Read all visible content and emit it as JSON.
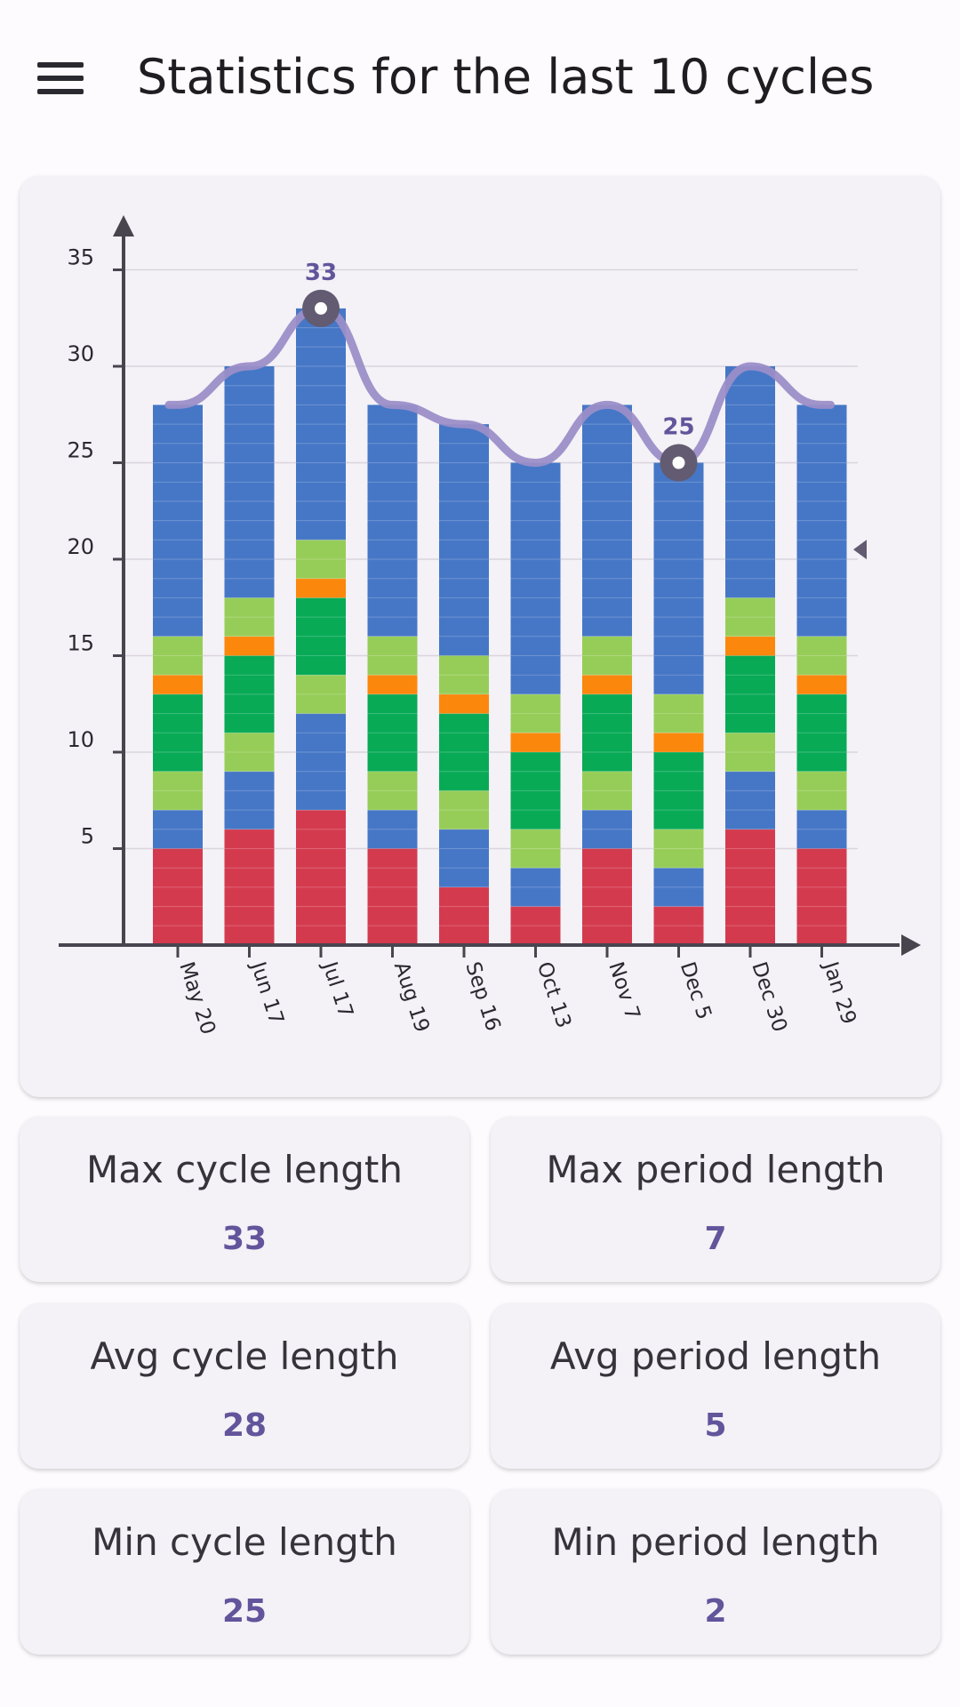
{
  "app_bar": {
    "title": "Statistics for the last 10 cycles",
    "menu_icon": "hamburger-menu-icon"
  },
  "colors": {
    "period": "#d43a4e",
    "normal": "#4677c6",
    "light_green": "#96cd58",
    "green": "#08aa56",
    "orange": "#fb870d",
    "trend_line": "#9b8ec8",
    "accent": "#63549b"
  },
  "chart_data": {
    "type": "bar",
    "stacked": true,
    "categories": [
      "May 20",
      "Jun 17",
      "Jul 17",
      "Aug 19",
      "Sep 16",
      "Oct 13",
      "Nov 7",
      "Dec 5",
      "Dec 30",
      "Jan 29"
    ],
    "cycle_lengths": [
      28,
      30,
      33,
      28,
      27,
      25,
      28,
      25,
      30,
      28
    ],
    "segments": [
      [
        {
          "color": "period",
          "days": 5
        },
        {
          "color": "normal",
          "days": 2
        },
        {
          "color": "light_green",
          "days": 2
        },
        {
          "color": "green",
          "days": 4
        },
        {
          "color": "orange",
          "days": 1
        },
        {
          "color": "light_green",
          "days": 2
        },
        {
          "color": "normal",
          "days": 12
        }
      ],
      [
        {
          "color": "period",
          "days": 6
        },
        {
          "color": "normal",
          "days": 3
        },
        {
          "color": "light_green",
          "days": 2
        },
        {
          "color": "green",
          "days": 4
        },
        {
          "color": "orange",
          "days": 1
        },
        {
          "color": "light_green",
          "days": 2
        },
        {
          "color": "normal",
          "days": 12
        }
      ],
      [
        {
          "color": "period",
          "days": 7
        },
        {
          "color": "normal",
          "days": 5
        },
        {
          "color": "light_green",
          "days": 2
        },
        {
          "color": "green",
          "days": 4
        },
        {
          "color": "orange",
          "days": 1
        },
        {
          "color": "light_green",
          "days": 2
        },
        {
          "color": "normal",
          "days": 12
        }
      ],
      [
        {
          "color": "period",
          "days": 5
        },
        {
          "color": "normal",
          "days": 2
        },
        {
          "color": "light_green",
          "days": 2
        },
        {
          "color": "green",
          "days": 4
        },
        {
          "color": "orange",
          "days": 1
        },
        {
          "color": "light_green",
          "days": 2
        },
        {
          "color": "normal",
          "days": 12
        }
      ],
      [
        {
          "color": "period",
          "days": 3
        },
        {
          "color": "normal",
          "days": 3
        },
        {
          "color": "light_green",
          "days": 2
        },
        {
          "color": "green",
          "days": 4
        },
        {
          "color": "orange",
          "days": 1
        },
        {
          "color": "light_green",
          "days": 2
        },
        {
          "color": "normal",
          "days": 12
        }
      ],
      [
        {
          "color": "period",
          "days": 2
        },
        {
          "color": "normal",
          "days": 2
        },
        {
          "color": "light_green",
          "days": 2
        },
        {
          "color": "green",
          "days": 4
        },
        {
          "color": "orange",
          "days": 1
        },
        {
          "color": "light_green",
          "days": 2
        },
        {
          "color": "normal",
          "days": 12
        }
      ],
      [
        {
          "color": "period",
          "days": 5
        },
        {
          "color": "normal",
          "days": 2
        },
        {
          "color": "light_green",
          "days": 2
        },
        {
          "color": "green",
          "days": 4
        },
        {
          "color": "orange",
          "days": 1
        },
        {
          "color": "light_green",
          "days": 2
        },
        {
          "color": "normal",
          "days": 12
        }
      ],
      [
        {
          "color": "period",
          "days": 2
        },
        {
          "color": "normal",
          "days": 2
        },
        {
          "color": "light_green",
          "days": 2
        },
        {
          "color": "green",
          "days": 4
        },
        {
          "color": "orange",
          "days": 1
        },
        {
          "color": "light_green",
          "days": 2
        },
        {
          "color": "normal",
          "days": 12
        }
      ],
      [
        {
          "color": "period",
          "days": 6
        },
        {
          "color": "normal",
          "days": 3
        },
        {
          "color": "light_green",
          "days": 2
        },
        {
          "color": "green",
          "days": 4
        },
        {
          "color": "orange",
          "days": 1
        },
        {
          "color": "light_green",
          "days": 2
        },
        {
          "color": "normal",
          "days": 12
        }
      ],
      [
        {
          "color": "period",
          "days": 5
        },
        {
          "color": "normal",
          "days": 2
        },
        {
          "color": "light_green",
          "days": 2
        },
        {
          "color": "green",
          "days": 4
        },
        {
          "color": "orange",
          "days": 1
        },
        {
          "color": "light_green",
          "days": 2
        },
        {
          "color": "normal",
          "days": 12
        }
      ]
    ],
    "ylim": [
      0,
      35
    ],
    "yticks": [
      5,
      10,
      15,
      20,
      25,
      30,
      35
    ],
    "highlights": [
      {
        "category": "Jul 17",
        "value": 33,
        "label": "33"
      },
      {
        "category": "Dec 5",
        "value": 25,
        "label": "25"
      }
    ],
    "grid": true,
    "average_marker_value": 20.5
  },
  "stats": [
    {
      "label": "Max cycle length",
      "value": "33"
    },
    {
      "label": "Max period length",
      "value": "7"
    },
    {
      "label": "Avg cycle length",
      "value": "28"
    },
    {
      "label": "Avg period length",
      "value": "5"
    },
    {
      "label": "Min cycle length",
      "value": "25"
    },
    {
      "label": "Min period length",
      "value": "2"
    }
  ]
}
